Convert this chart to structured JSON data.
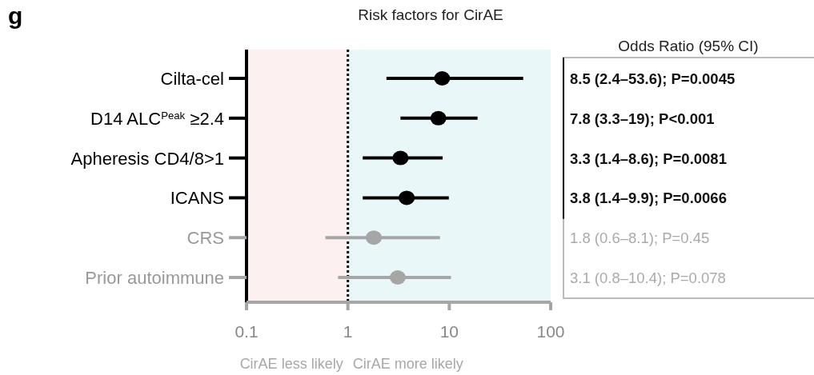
{
  "chart_data": {
    "type": "scatter",
    "title": "Risk factors for CirAE",
    "orientation": "horizontal",
    "log": "x",
    "marker": "circle",
    "categories": [
      "Cilta-cel",
      "D14 ALC$^{Peak}$ ≥2.4",
      "Apheresis CD4/8>1",
      "ICANS",
      "CRS",
      "Prior autoimmune"
    ],
    "values": [
      8.5,
      7.8,
      3.3,
      3.8,
      1.8,
      3.1
    ],
    "errors": [
      [
        2.4,
        53.6
      ],
      [
        3.3,
        19
      ],
      [
        1.4,
        8.6
      ],
      [
        1.4,
        9.9
      ],
      [
        0.6,
        8.1
      ],
      [
        0.8,
        10.4
      ]
    ],
    "colors": [
      "#000000",
      "#000000",
      "#000000",
      "#000000",
      "#a6a6a6",
      "#a6a6a6"
    ],
    "xlim": [
      0.1,
      100
    ],
    "xticks": [
      0.1,
      1,
      10,
      100
    ],
    "bands": [
      {
        "axis": "x",
        "from": 0.1,
        "to": 1,
        "color": "#fdf0f0"
      },
      {
        "axis": "x",
        "from": 1,
        "to": 100,
        "color": "#eaf7f8"
      }
    ],
    "ref_lines": [
      {
        "axis": "x",
        "value": 1,
        "line_style": "dotted",
        "color": "#000000"
      }
    ],
    "annotations": [
      "g",
      "Odds Ratio (95% CI)",
      "8.5 (2.4–53.6); P=0.0045",
      "7.8 (3.3–19); P<0.001",
      "3.3 (1.4–8.6); P=0.0081",
      "3.8 (1.4–9.9); P=0.0066",
      "1.8 (0.6–8.1); P=0.45",
      "3.1 (0.8–10.4); P=0.078",
      "CirAE less likely",
      "CirAE more likely"
    ]
  }
}
